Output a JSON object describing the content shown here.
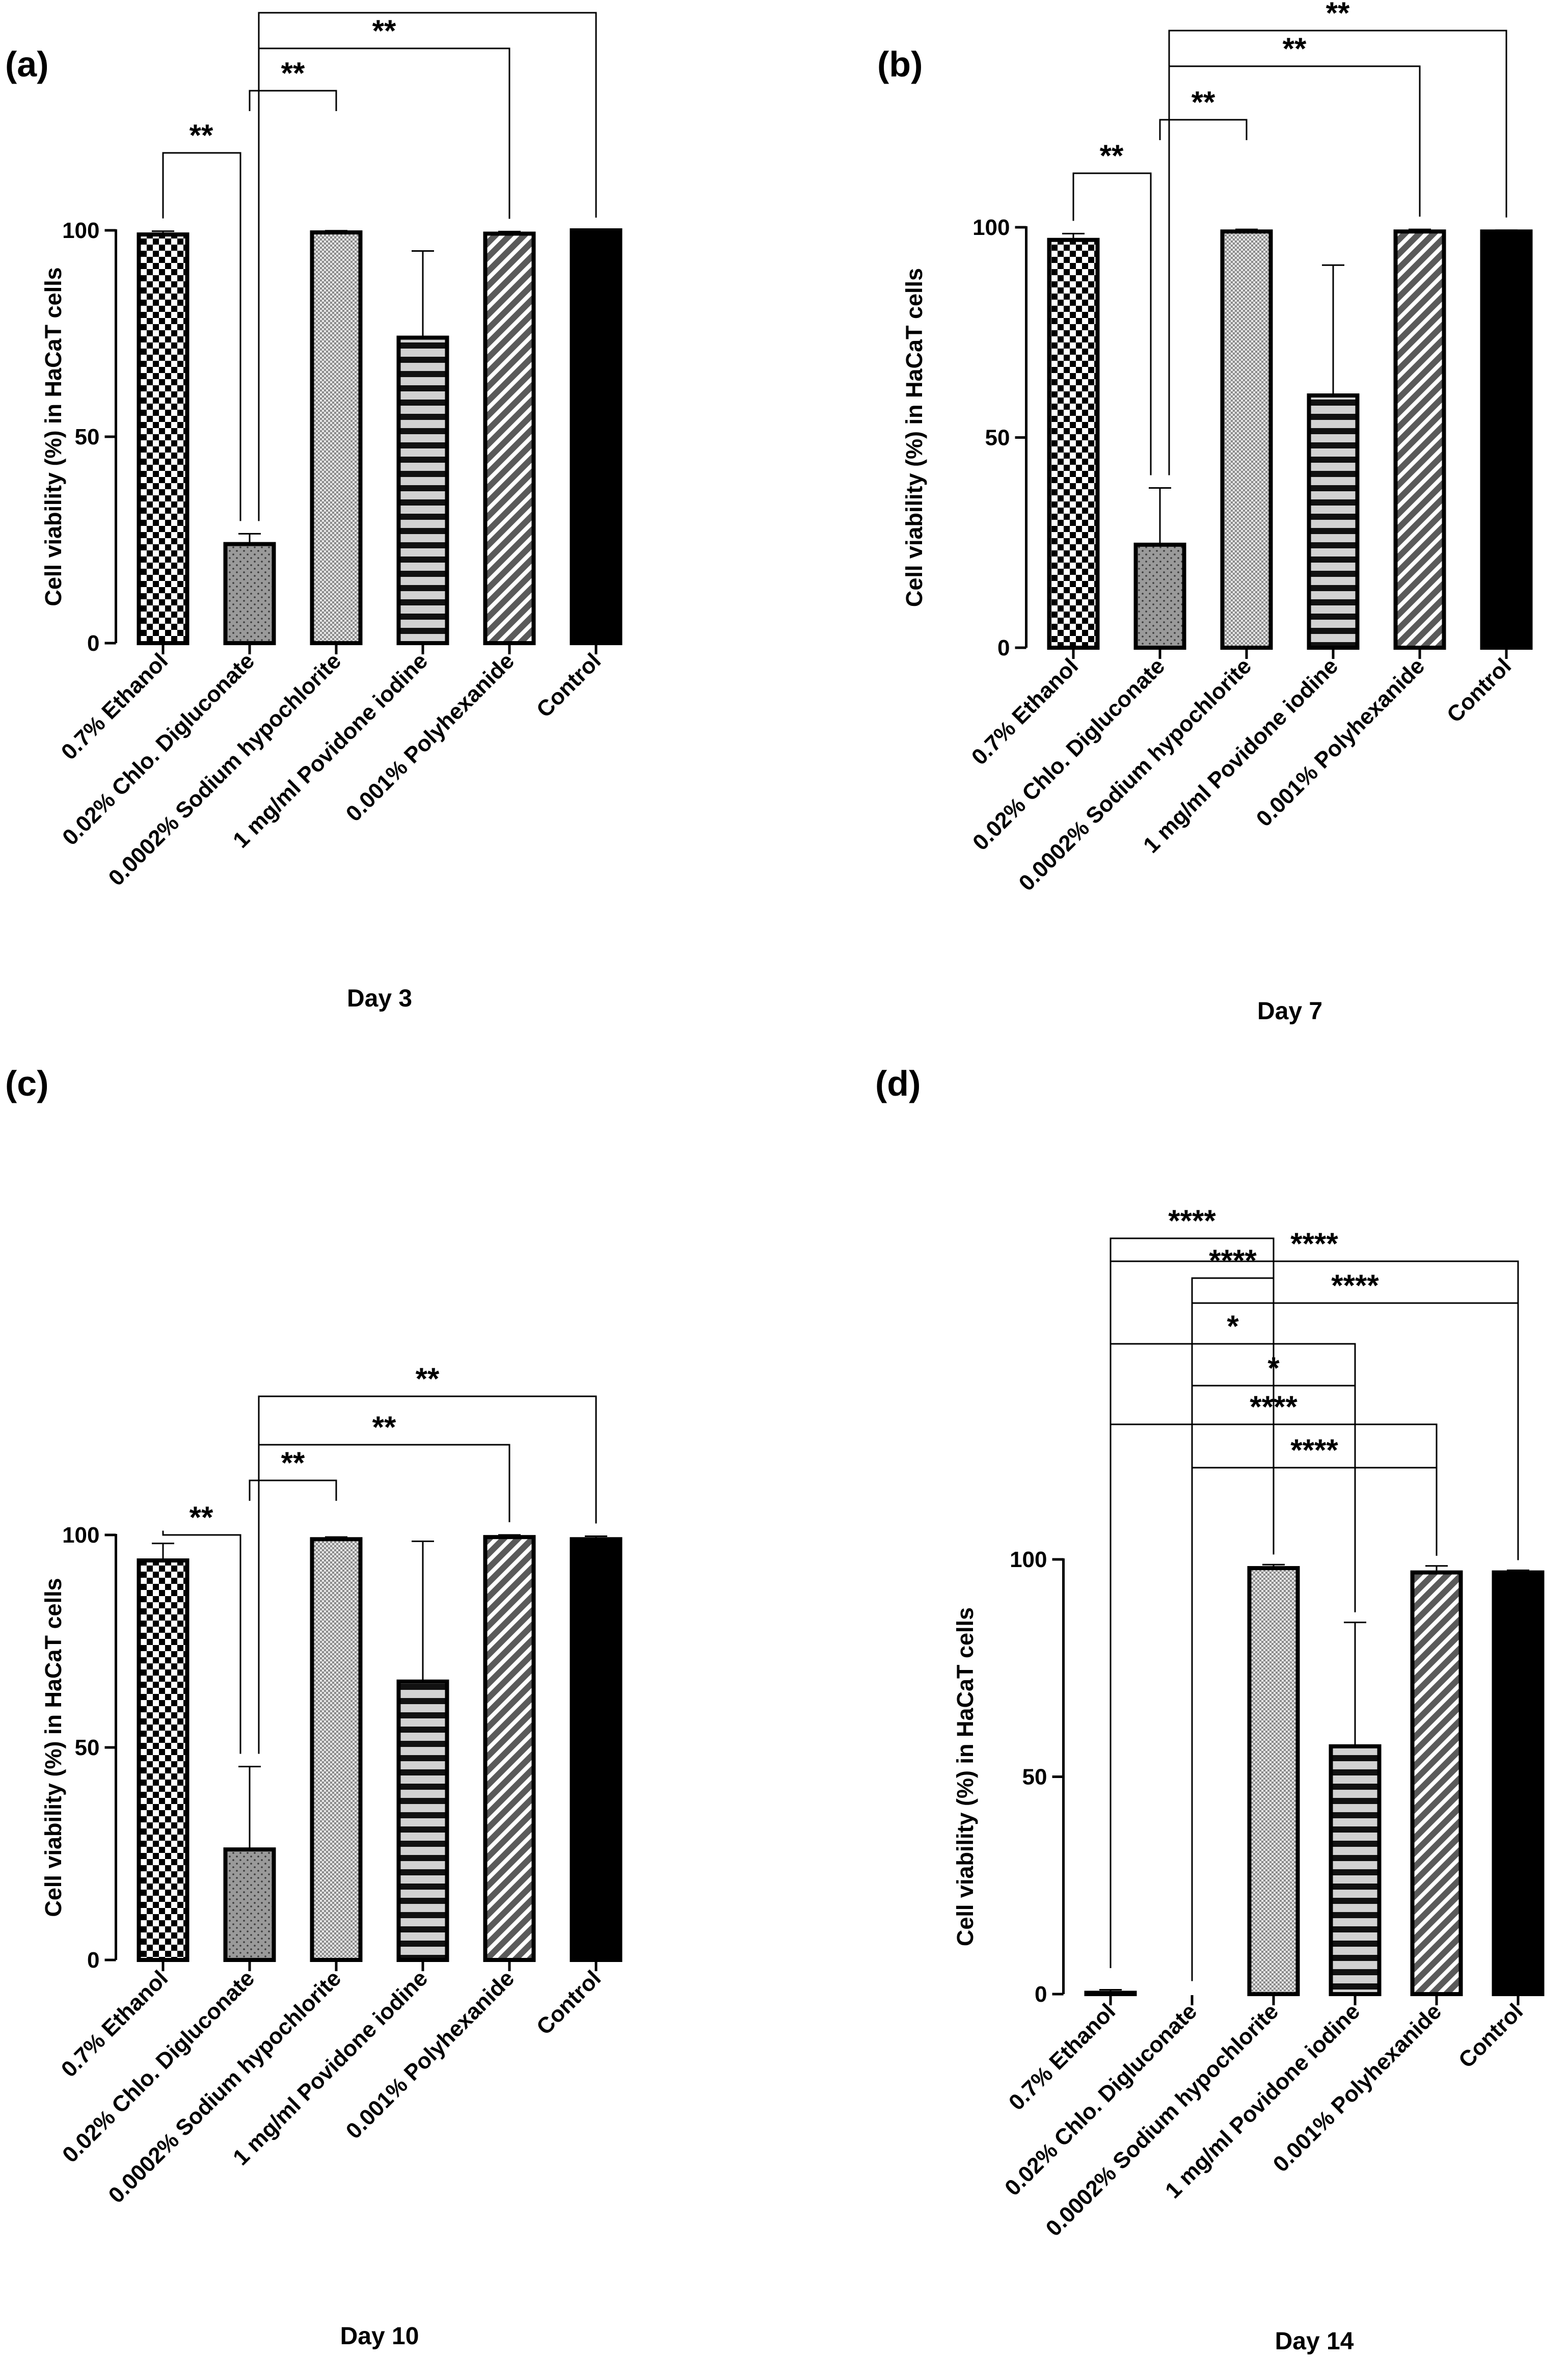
{
  "chart_data": [
    {
      "type": "bar",
      "panel_label": "(a)",
      "title": "",
      "xlabel": "Day 3",
      "ylabel": "Cell viability (%) in  HaCaT cells",
      "ylim": [
        0,
        100
      ],
      "yticks": [
        "0",
        "50",
        "100"
      ],
      "categories": [
        "0.7% Ethanol",
        "0.02% Chlo. Digluconate",
        "0.0002% Sodium hypochlorite",
        "1 mg/ml Povidone iodine",
        "0.001% Polyhexanide",
        "Control"
      ],
      "values": [
        99,
        24,
        99.5,
        74,
        99.2,
        100
      ],
      "errors": [
        0.8,
        2.5,
        0.4,
        21,
        0.5,
        0
      ],
      "comparisons": [
        {
          "from": 0,
          "to": 1,
          "label": "**"
        },
        {
          "from": 1,
          "to": 2,
          "label": "**"
        },
        {
          "from": 1,
          "to": 4,
          "label": "**"
        },
        {
          "from": 1,
          "to": 5,
          "label": "**"
        }
      ]
    },
    {
      "type": "bar",
      "panel_label": "(b)",
      "title": "",
      "xlabel": "Day 7",
      "ylabel": "Cell viability (%) in  HaCaT cells",
      "ylim": [
        0,
        100
      ],
      "yticks": [
        "0",
        "50",
        "100"
      ],
      "categories": [
        "0.7% Ethanol",
        "0.02% Chlo. Digluconate",
        "0.0002% Sodium hypochlorite",
        "1 mg/ml Povidone iodine",
        "0.001% Polyhexanide",
        "Control"
      ],
      "values": [
        97,
        24.5,
        99,
        60,
        99,
        99
      ],
      "errors": [
        1.5,
        13.5,
        0.5,
        31,
        0.5,
        0.3
      ],
      "comparisons": [
        {
          "from": 0,
          "to": 1,
          "label": "**"
        },
        {
          "from": 1,
          "to": 2,
          "label": "**"
        },
        {
          "from": 1,
          "to": 4,
          "label": "**"
        },
        {
          "from": 1,
          "to": 5,
          "label": "**"
        }
      ]
    },
    {
      "type": "bar",
      "panel_label": "(c)",
      "title": "",
      "xlabel": "Day 10",
      "ylabel": "Cell viability (%) in  HaCaT cells",
      "ylim": [
        0,
        100
      ],
      "yticks": [
        "0",
        "50",
        "100"
      ],
      "categories": [
        "0.7% Ethanol",
        "0.02% Chlo. Digluconate",
        "0.0002% Sodium hypochlorite",
        "1 mg/ml Povidone iodine",
        "0.001% Polyhexanide",
        "Control"
      ],
      "values": [
        94,
        26,
        99,
        65.5,
        99.5,
        99
      ],
      "errors": [
        4,
        19.5,
        0.5,
        33,
        0.5,
        0.7
      ],
      "comparisons": [
        {
          "from": 0,
          "to": 1,
          "label": "**"
        },
        {
          "from": 1,
          "to": 2,
          "label": "**"
        },
        {
          "from": 1,
          "to": 4,
          "label": "**"
        },
        {
          "from": 1,
          "to": 5,
          "label": "**"
        }
      ]
    },
    {
      "type": "bar",
      "panel_label": "(d)",
      "title": "",
      "xlabel": "Day 14",
      "ylabel": "Cell viability (%) in  HaCaT cells",
      "ylim": [
        0,
        100
      ],
      "yticks": [
        "0",
        "50",
        "100"
      ],
      "categories": [
        "0.7% Ethanol",
        "0.02% Chlo. Digluconate",
        "0.0002% Sodium hypochlorite",
        "1 mg/ml Povidone iodine",
        "0.001% Polyhexanide",
        "Control"
      ],
      "values": [
        0.3,
        0,
        98,
        57,
        97,
        97
      ],
      "errors": [
        0.7,
        0,
        0.8,
        28.5,
        1.5,
        0.5
      ],
      "comparisons": [
        {
          "from": 1,
          "to": 2,
          "label": "****"
        },
        {
          "from": 0,
          "to": 2,
          "label": "****"
        },
        {
          "from": 1,
          "to": 3,
          "label": "*"
        },
        {
          "from": 0,
          "to": 3,
          "label": "*"
        },
        {
          "from": 1,
          "to": 4,
          "label": "****"
        },
        {
          "from": 0,
          "to": 4,
          "label": "****"
        },
        {
          "from": 1,
          "to": 5,
          "label": "****"
        },
        {
          "from": 0,
          "to": 5,
          "label": "****"
        }
      ]
    }
  ]
}
